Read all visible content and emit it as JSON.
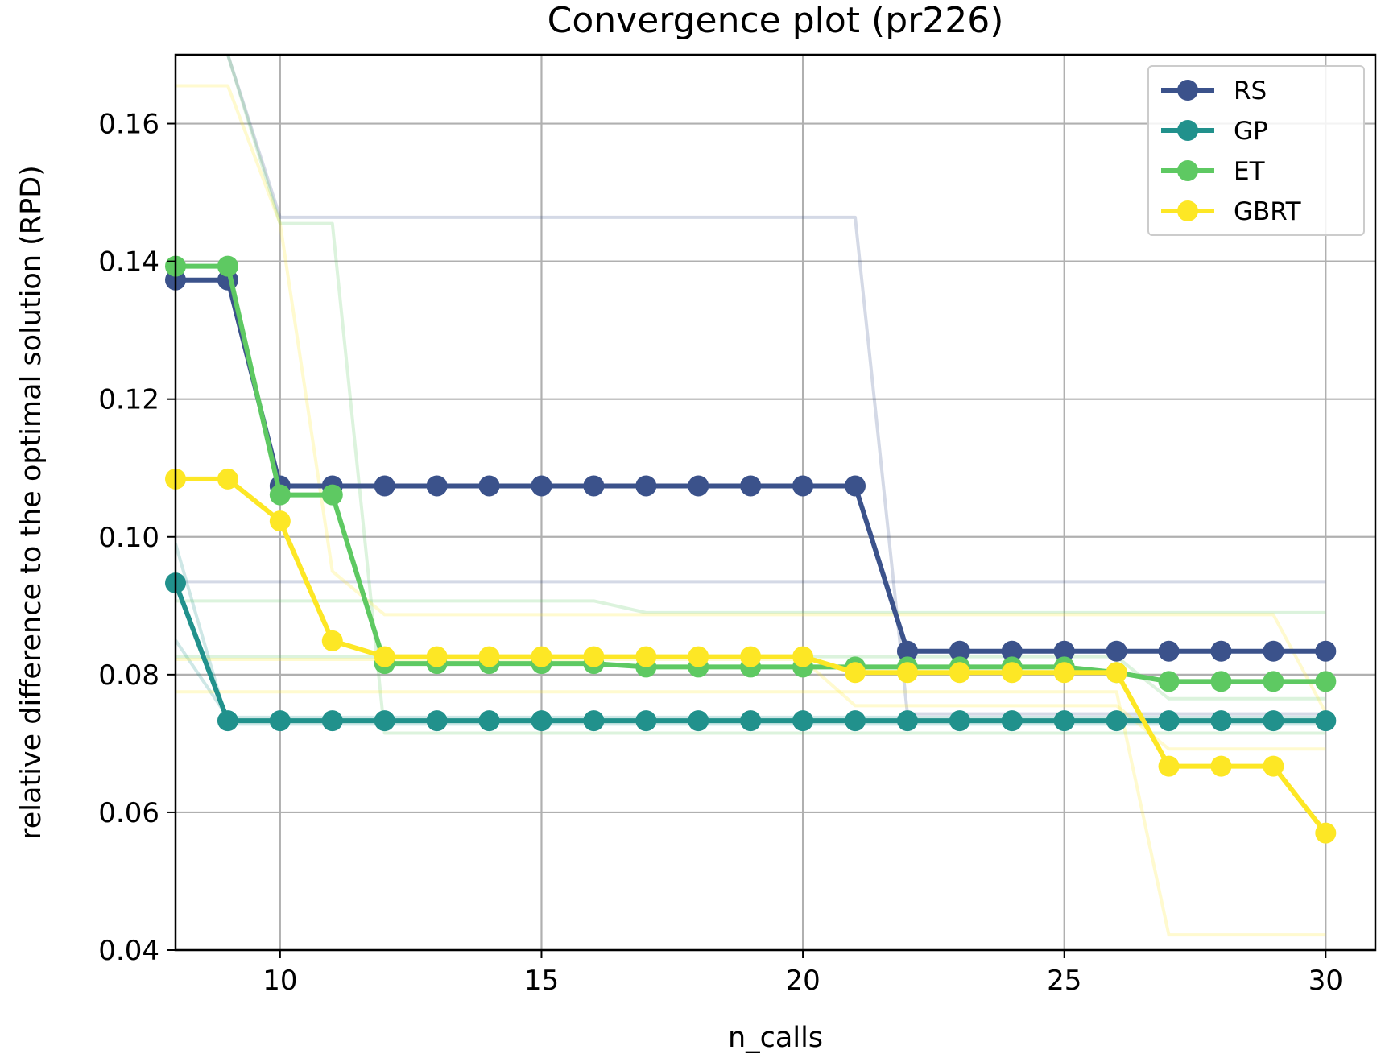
{
  "colors": {
    "RS": "#3b528b",
    "GP": "#21918c",
    "ET": "#5ec962",
    "GBRT": "#fde725"
  },
  "chart_data": {
    "type": "line",
    "title": "Convergence plot (pr226)",
    "xlabel": "n_calls",
    "ylabel": "relative difference to the optimal solution (RPD)",
    "xlim": [
      8,
      30.95
    ],
    "ylim": [
      0.04,
      0.17
    ],
    "xticks": [
      10,
      15,
      20,
      25,
      30
    ],
    "yticks": [
      0.04,
      0.06,
      0.08,
      0.1,
      0.12,
      0.14,
      0.16
    ],
    "xtick_labels": [
      "10",
      "15",
      "20",
      "25",
      "30"
    ],
    "ytick_labels": [
      "0.04",
      "0.06",
      "0.08",
      "0.10",
      "0.12",
      "0.14",
      "0.16"
    ],
    "grid": true,
    "legend_position": "top-right",
    "x": [
      8,
      9,
      10,
      11,
      12,
      13,
      14,
      15,
      16,
      17,
      18,
      19,
      20,
      21,
      22,
      23,
      24,
      25,
      26,
      27,
      28,
      29,
      30
    ],
    "series": [
      {
        "name": "RS",
        "values": [
          0.1373,
          0.1373,
          0.1074,
          0.1074,
          0.1074,
          0.1074,
          0.1074,
          0.1074,
          0.1074,
          0.1074,
          0.1074,
          0.1074,
          0.1074,
          0.1074,
          0.0834,
          0.0834,
          0.0834,
          0.0834,
          0.0834,
          0.0834,
          0.0834,
          0.0834,
          0.0834
        ]
      },
      {
        "name": "GP",
        "values": [
          0.0933,
          0.0733,
          0.0733,
          0.0733,
          0.0733,
          0.0733,
          0.0733,
          0.0733,
          0.0733,
          0.0733,
          0.0733,
          0.0733,
          0.0733,
          0.0733,
          0.0733,
          0.0733,
          0.0733,
          0.0733,
          0.0733,
          0.0733,
          0.0733,
          0.0733,
          0.0733
        ]
      },
      {
        "name": "ET",
        "values": [
          0.1393,
          0.1393,
          0.1061,
          0.1061,
          0.0816,
          0.0816,
          0.0816,
          0.0816,
          0.0816,
          0.0811,
          0.0811,
          0.0811,
          0.0811,
          0.0811,
          0.0811,
          0.0811,
          0.0811,
          0.0811,
          0.0803,
          0.079,
          0.079,
          0.079,
          0.079
        ]
      },
      {
        "name": "GBRT",
        "values": [
          0.1084,
          0.1084,
          0.1023,
          0.0849,
          0.0826,
          0.0826,
          0.0826,
          0.0826,
          0.0826,
          0.0826,
          0.0826,
          0.0826,
          0.0826,
          0.0803,
          0.0803,
          0.0803,
          0.0803,
          0.0803,
          0.0803,
          0.0667,
          0.0667,
          0.0667,
          0.057
        ]
      }
    ],
    "individual_runs": [
      {
        "series": "RS",
        "values": [
          0.17,
          0.17,
          0.1464,
          0.1464,
          0.1464,
          0.1464,
          0.1464,
          0.1464,
          0.1464,
          0.1464,
          0.1464,
          0.1464,
          0.1464,
          0.1464,
          0.0743,
          0.0743,
          0.0743,
          0.0743,
          0.0743,
          0.0743,
          0.0743,
          0.0743,
          0.0743
        ]
      },
      {
        "series": "RS",
        "values": [
          0.0935,
          0.0935,
          0.0935,
          0.0935,
          0.0935,
          0.0935,
          0.0935,
          0.0935,
          0.0935,
          0.0935,
          0.0935,
          0.0935,
          0.0935,
          0.0935,
          0.0935,
          0.0935,
          0.0935,
          0.0935,
          0.0935,
          0.0935,
          0.0935,
          0.0935,
          0.0935
        ]
      },
      {
        "series": "GP",
        "values": [
          0.099,
          0.0728,
          0.0728,
          0.0728,
          0.0728,
          0.0728,
          0.0728,
          0.0728,
          0.0728,
          0.0728,
          0.0728,
          0.0728,
          0.0728,
          0.0728,
          0.0728,
          0.0728,
          0.0728,
          0.0728,
          0.0728,
          0.0728,
          0.0728,
          0.0728,
          0.0728
        ]
      },
      {
        "series": "GP",
        "values": [
          0.085,
          0.0738,
          0.0738,
          0.0738,
          0.0738,
          0.0738,
          0.0738,
          0.0738,
          0.0738,
          0.0738,
          0.0738,
          0.0738,
          0.0738,
          0.0738,
          0.0738,
          0.0738,
          0.0738,
          0.0738,
          0.0738,
          0.0738,
          0.0738,
          0.0738,
          0.0738
        ]
      },
      {
        "series": "ET",
        "values": [
          0.17,
          0.17,
          0.1455,
          0.1455,
          0.0715,
          0.0715,
          0.0715,
          0.0715,
          0.0715,
          0.0715,
          0.0715,
          0.0715,
          0.0715,
          0.0715,
          0.0715,
          0.0715,
          0.0715,
          0.0715,
          0.0715,
          0.0715,
          0.0715,
          0.0715,
          0.0715
        ]
      },
      {
        "series": "ET",
        "values": [
          0.0907,
          0.0907,
          0.0907,
          0.0907,
          0.0907,
          0.0907,
          0.0907,
          0.0907,
          0.0907,
          0.089,
          0.089,
          0.089,
          0.089,
          0.089,
          0.089,
          0.089,
          0.089,
          0.089,
          0.089,
          0.089,
          0.089,
          0.089,
          0.089
        ]
      },
      {
        "series": "ET",
        "values": [
          0.0826,
          0.0826,
          0.0826,
          0.0826,
          0.0826,
          0.0826,
          0.0826,
          0.0826,
          0.0826,
          0.0826,
          0.0826,
          0.0826,
          0.0826,
          0.0826,
          0.0826,
          0.0826,
          0.0826,
          0.0826,
          0.0826,
          0.0765,
          0.0765,
          0.0765,
          0.0765
        ]
      },
      {
        "series": "GBRT",
        "values": [
          0.1655,
          0.1655,
          0.1455,
          0.095,
          0.0887,
          0.0887,
          0.0887,
          0.0887,
          0.0887,
          0.0887,
          0.0887,
          0.0887,
          0.0887,
          0.0887,
          0.0887,
          0.0887,
          0.0887,
          0.0887,
          0.0887,
          0.0887,
          0.0887,
          0.0887,
          0.0745
        ]
      },
      {
        "series": "GBRT",
        "values": [
          0.0775,
          0.0775,
          0.0775,
          0.0775,
          0.0775,
          0.0775,
          0.0775,
          0.0775,
          0.0775,
          0.0775,
          0.0775,
          0.0775,
          0.0775,
          0.0775,
          0.0775,
          0.0775,
          0.0775,
          0.0775,
          0.0775,
          0.0422,
          0.0422,
          0.0422,
          0.0422
        ]
      },
      {
        "series": "GBRT",
        "values": [
          0.0822,
          0.0822,
          0.0822,
          0.0822,
          0.0822,
          0.0822,
          0.0822,
          0.0822,
          0.0822,
          0.0822,
          0.0822,
          0.0822,
          0.0822,
          0.0755,
          0.0755,
          0.0755,
          0.0755,
          0.0755,
          0.0755,
          0.0692,
          0.0692,
          0.0692,
          0.0692
        ]
      }
    ]
  }
}
